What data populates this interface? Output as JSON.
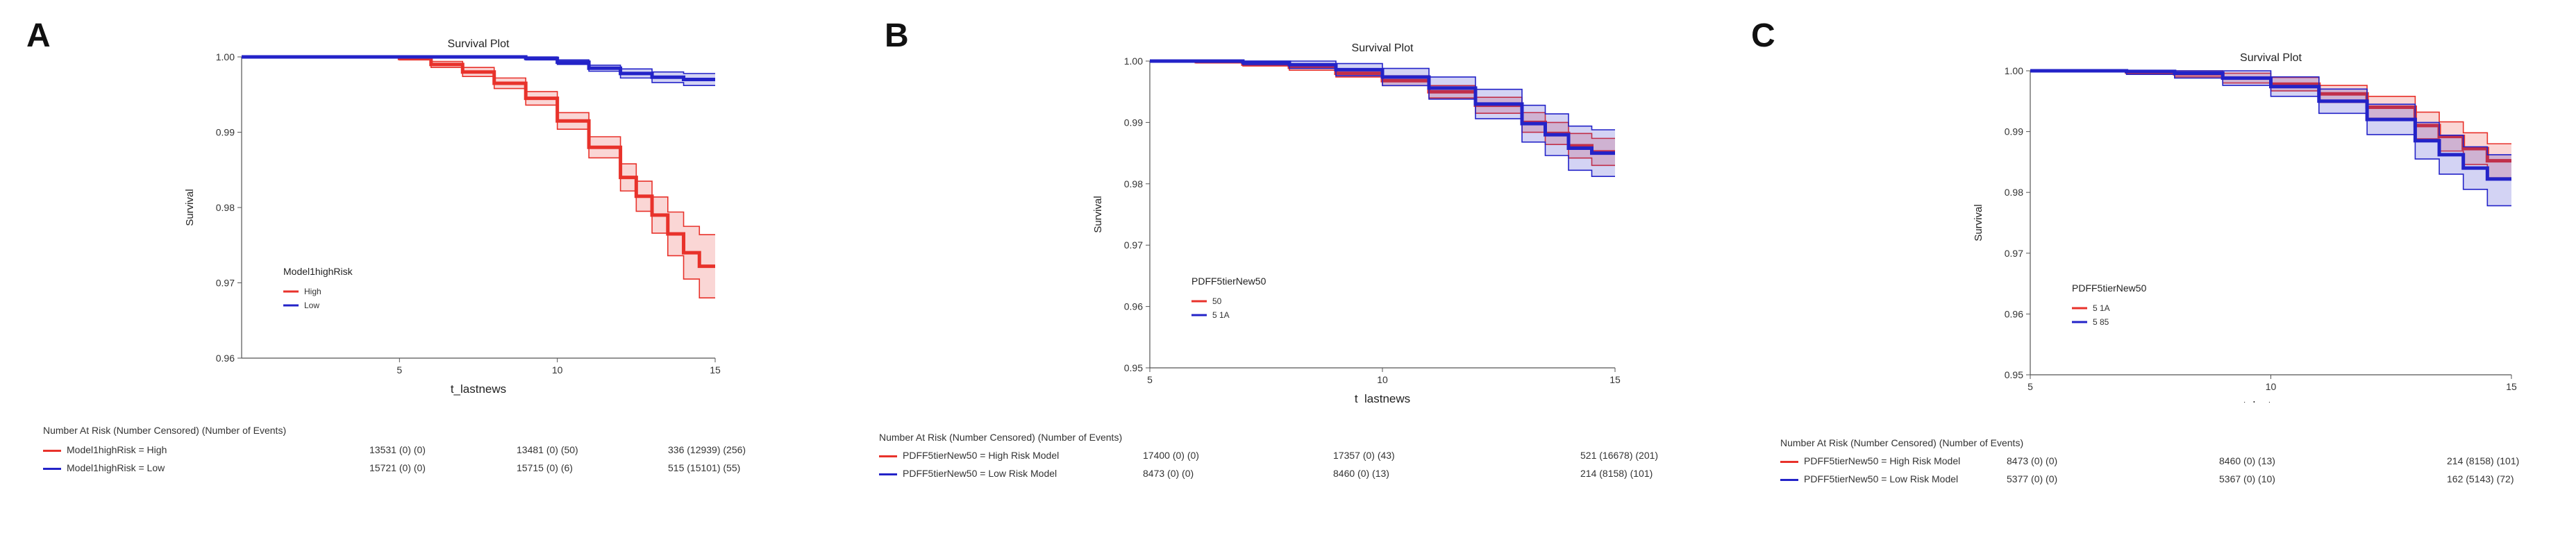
{
  "panels": [
    {
      "letter": "A",
      "chart_data": {
        "type": "line",
        "title": "Survival Plot",
        "xlabel": "t_lastnews",
        "ylabel": "Survival",
        "xlim": [
          0,
          15
        ],
        "ylim": [
          0.96,
          1.0
        ],
        "xticks": [
          5,
          10,
          15
        ],
        "yticks": [
          0.96,
          0.97,
          0.98,
          0.99,
          1.0
        ],
        "ytick_labels": [
          "0.96",
          "0.97",
          "0.98",
          "0.99",
          "1.00"
        ],
        "xtick_labels": [
          "5",
          "10",
          "15"
        ],
        "grid": false,
        "legend": {
          "title": "Model1highRisk",
          "position": "lower-left",
          "items": [
            "High",
            "Low"
          ]
        },
        "series": [
          {
            "name": "High",
            "color": "#e8322b",
            "x": [
              0,
              3,
              5,
              6,
              7,
              8,
              9,
              10,
              11,
              12,
              12.5,
              13,
              13.5,
              14,
              14.5,
              15
            ],
            "y": [
              1.0,
              1.0,
              0.9998,
              0.999,
              0.998,
              0.9965,
              0.9945,
              0.9915,
              0.988,
              0.984,
              0.9815,
              0.979,
              0.9765,
              0.974,
              0.9722,
              0.9722
            ],
            "lower": [
              1.0,
              1.0,
              0.9996,
              0.9986,
              0.9974,
              0.9958,
              0.9936,
              0.9904,
              0.9866,
              0.9822,
              0.9795,
              0.9766,
              0.9736,
              0.9705,
              0.968,
              0.968
            ],
            "upper": [
              1.0,
              1.0,
              1.0,
              0.9994,
              0.9986,
              0.9972,
              0.9954,
              0.9926,
              0.9894,
              0.9858,
              0.9835,
              0.9814,
              0.9794,
              0.9775,
              0.9764,
              0.9764
            ]
          },
          {
            "name": "Low",
            "color": "#2323c8",
            "x": [
              0,
              5,
              8,
              9,
              10,
              11,
              12,
              13,
              14,
              14.5,
              15
            ],
            "y": [
              1.0,
              1.0,
              1.0,
              0.9998,
              0.9993,
              0.9985,
              0.9978,
              0.9973,
              0.997,
              0.997,
              0.997
            ],
            "lower": [
              1.0,
              1.0,
              0.9999,
              0.9996,
              0.999,
              0.9981,
              0.9972,
              0.9966,
              0.9962,
              0.9962,
              0.9962
            ],
            "upper": [
              1.0,
              1.0,
              1.0,
              1.0,
              0.9996,
              0.9989,
              0.9984,
              0.998,
              0.9978,
              0.9978,
              0.9978
            ]
          }
        ]
      },
      "risk_table": {
        "title": "Number At Risk (Number Censored) (Number of Events)",
        "rows": [
          {
            "label": "Model1highRisk = High",
            "color": "#e8322b",
            "cells": [
              "13531 (0) (0)",
              "13481 (0) (50)",
              "336 (12939) (256)"
            ]
          },
          {
            "label": "Model1highRisk = Low",
            "color": "#2323c8",
            "cells": [
              "15721 (0) (0)",
              "15715 (0) (6)",
              "515 (15101) (55)"
            ]
          }
        ]
      }
    },
    {
      "letter": "B",
      "chart_data": {
        "type": "line",
        "title": "Survival Plot",
        "xlabel": "t_lastnews",
        "ylabel": "Survival",
        "xlim": [
          5,
          15
        ],
        "ylim": [
          0.95,
          1.0
        ],
        "xticks": [
          5,
          10,
          15
        ],
        "yticks": [
          0.95,
          0.96,
          0.97,
          0.98,
          0.99,
          1.0
        ],
        "ytick_labels": [
          "0.95",
          "0.96",
          "0.97",
          "0.98",
          "0.99",
          "1.00"
        ],
        "xtick_labels": [
          "5",
          "10",
          "15"
        ],
        "grid": false,
        "legend": {
          "title": "PDFF5tierNew50",
          "position": "lower-left",
          "items": [
            "50",
            "5 1A"
          ]
        },
        "series": [
          {
            "name": "50",
            "color": "#e8322b",
            "x": [
              5,
              6,
              7,
              8,
              9,
              10,
              11,
              12,
              13,
              13.5,
              14,
              14.5,
              15
            ],
            "y": [
              1.0,
              0.9999,
              0.9995,
              0.999,
              0.998,
              0.9968,
              0.995,
              0.9928,
              0.99,
              0.9882,
              0.9862,
              0.9852,
              0.9852
            ],
            "lower": [
              1.0,
              0.9997,
              0.9992,
              0.9985,
              0.9974,
              0.996,
              0.994,
              0.9915,
              0.9884,
              0.9864,
              0.9842,
              0.983,
              0.983
            ],
            "upper": [
              1.0,
              1.0,
              0.9998,
              0.9995,
              0.9986,
              0.9976,
              0.996,
              0.9941,
              0.9916,
              0.99,
              0.9882,
              0.9874,
              0.9874
            ]
          },
          {
            "name": "5 1A",
            "color": "#2323c8",
            "x": [
              5,
              6,
              7,
              8,
              9,
              10,
              11,
              12,
              13,
              13.5,
              14,
              14.5,
              15
            ],
            "y": [
              1.0,
              1.0,
              0.9998,
              0.9994,
              0.9986,
              0.9974,
              0.9956,
              0.993,
              0.9898,
              0.988,
              0.9858,
              0.985,
              0.985
            ],
            "lower": [
              1.0,
              0.9998,
              0.9994,
              0.9988,
              0.9976,
              0.996,
              0.9938,
              0.9906,
              0.9868,
              0.9846,
              0.9822,
              0.9812,
              0.9812
            ],
            "upper": [
              1.0,
              1.0,
              1.0,
              1.0,
              0.9996,
              0.9988,
              0.9974,
              0.9954,
              0.9928,
              0.9914,
              0.9894,
              0.9888,
              0.9888
            ]
          }
        ]
      },
      "risk_table": {
        "title": "Number At Risk (Number Censored) (Number of Events)",
        "rows": [
          {
            "label": "PDFF5tierNew50 = High Risk Model",
            "color": "#e8322b",
            "cells": [
              "17400 (0) (0)",
              "17357 (0) (43)",
              "521 (16678) (201)"
            ]
          },
          {
            "label": "PDFF5tierNew50 = Low Risk Model",
            "color": "#2323c8",
            "cells": [
              "8473 (0) (0)",
              "8460 (0) (13)",
              "214 (8158) (101)"
            ]
          }
        ]
      }
    },
    {
      "letter": "C",
      "chart_data": {
        "type": "line",
        "title": "Survival Plot",
        "xlabel": "t_lastnews",
        "ylabel": "Survival",
        "xlim": [
          5,
          15
        ],
        "ylim": [
          0.95,
          1.0
        ],
        "xticks": [
          5,
          10,
          15
        ],
        "yticks": [
          0.95,
          0.96,
          0.97,
          0.98,
          0.99,
          1.0
        ],
        "ytick_labels": [
          "0.95",
          "0.96",
          "0.97",
          "0.98",
          "0.99",
          "1.00"
        ],
        "xtick_labels": [
          "5",
          "10",
          "15"
        ],
        "grid": false,
        "legend": {
          "title": "PDFF5tierNew50",
          "position": "lower-left",
          "items": [
            "5 1A",
            "5 85"
          ]
        },
        "series": [
          {
            "name": "5 1A",
            "color": "#e8322b",
            "x": [
              5,
              6,
              7,
              8,
              9,
              10,
              11,
              12,
              13,
              13.5,
              14,
              14.5,
              15
            ],
            "y": [
              1.0,
              1.0,
              0.9998,
              0.9995,
              0.9988,
              0.9978,
              0.9962,
              0.994,
              0.991,
              0.9892,
              0.9872,
              0.9852,
              0.9852
            ],
            "lower": [
              1.0,
              0.9998,
              0.9995,
              0.999,
              0.998,
              0.9967,
              0.9948,
              0.9922,
              0.9888,
              0.9868,
              0.9846,
              0.9824,
              0.9824
            ],
            "upper": [
              1.0,
              1.0,
              1.0,
              1.0,
              0.9996,
              0.9989,
              0.9976,
              0.9958,
              0.9932,
              0.9916,
              0.9898,
              0.988,
              0.988
            ]
          },
          {
            "name": "5 85",
            "color": "#2323c8",
            "x": [
              5,
              6,
              7,
              8,
              9,
              10,
              11,
              12,
              13,
              13.5,
              14,
              14.5,
              15
            ],
            "y": [
              1.0,
              1.0,
              0.9999,
              0.9996,
              0.9988,
              0.9974,
              0.995,
              0.992,
              0.9885,
              0.9862,
              0.984,
              0.9822,
              0.9822
            ],
            "lower": [
              1.0,
              0.9998,
              0.9994,
              0.9988,
              0.9976,
              0.9958,
              0.993,
              0.9895,
              0.9855,
              0.983,
              0.9805,
              0.9778,
              0.9778
            ],
            "upper": [
              1.0,
              1.0,
              1.0,
              1.0,
              1.0,
              0.999,
              0.997,
              0.9945,
              0.9915,
              0.9894,
              0.9875,
              0.9862,
              0.9862
            ]
          }
        ]
      },
      "risk_table": {
        "title": "Number At Risk (Number Censored) (Number of Events)",
        "rows": [
          {
            "label": "PDFF5tierNew50 = High Risk Model",
            "color": "#e8322b",
            "cells": [
              "8473 (0) (0)",
              "8460 (0) (13)",
              "214 (8158) (101)"
            ]
          },
          {
            "label": "PDFF5tierNew50 = Low Risk Model",
            "color": "#2323c8",
            "cells": [
              "5377 (0) (0)",
              "5367 (0) (10)",
              "162 (5143) (72)"
            ]
          }
        ]
      }
    }
  ]
}
